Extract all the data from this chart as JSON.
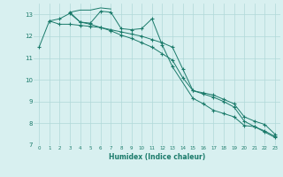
{
  "xlabel": "Humidex (Indice chaleur)",
  "x": [
    0,
    1,
    2,
    3,
    4,
    5,
    6,
    7,
    8,
    9,
    10,
    11,
    12,
    13,
    14,
    15,
    16,
    17,
    18,
    19,
    20,
    21,
    22,
    23
  ],
  "line1": [
    11.5,
    12.7,
    12.8,
    13.05,
    12.65,
    12.6,
    13.15,
    13.1,
    12.35,
    12.3,
    12.35,
    12.8,
    11.6,
    10.6,
    null,
    9.15,
    8.9,
    8.6,
    8.45,
    8.3,
    7.9,
    7.85,
    7.6,
    7.35
  ],
  "line2": [
    null,
    null,
    null,
    13.1,
    13.2,
    13.2,
    13.3,
    13.25,
    null,
    null,
    null,
    null,
    null,
    null,
    null,
    null,
    null,
    null,
    null,
    null,
    null,
    null,
    null,
    null
  ],
  "line3": [
    null,
    12.7,
    12.55,
    12.55,
    12.5,
    12.45,
    12.4,
    12.3,
    12.2,
    12.1,
    12.0,
    11.85,
    11.7,
    11.5,
    10.5,
    9.5,
    9.4,
    9.3,
    9.1,
    8.9,
    8.3,
    8.1,
    7.95,
    7.5
  ],
  "line4": [
    null,
    null,
    null,
    13.1,
    12.65,
    12.55,
    12.4,
    12.25,
    12.05,
    11.9,
    11.7,
    11.5,
    11.2,
    10.9,
    10.1,
    9.5,
    9.35,
    9.2,
    9.0,
    8.75,
    8.1,
    7.85,
    7.65,
    7.4
  ],
  "line_color": "#1a7a6a",
  "bg_color": "#d8f0f0",
  "grid_color": "#b0d8d8",
  "ylim": [
    7,
    13.5
  ],
  "yticks": [
    7,
    8,
    9,
    10,
    11,
    12,
    13
  ],
  "xlim": [
    -0.5,
    23.5
  ]
}
